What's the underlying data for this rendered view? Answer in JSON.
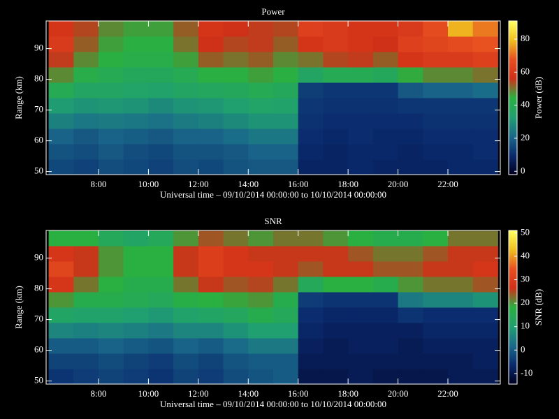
{
  "chart_data": [
    {
      "type": "heatmap",
      "title": "Power",
      "ylabel": "Range (km)",
      "xlabel": "Universal time – 09/10/2014 00:00:00 to 10/10/2014 00:00:00",
      "colorbar_label": "Power (dB)",
      "xlim": [
        5.9,
        24.1
      ],
      "ylim": [
        49,
        99
      ],
      "zlim": [
        -2,
        91
      ],
      "xticks": [
        {
          "value": 8,
          "label": "8:00"
        },
        {
          "value": 10,
          "label": "10:00"
        },
        {
          "value": 12,
          "label": "12:00"
        },
        {
          "value": 14,
          "label": "14:00"
        },
        {
          "value": 16,
          "label": "16:00"
        },
        {
          "value": 18,
          "label": "18:00"
        },
        {
          "value": 20,
          "label": "20:00"
        },
        {
          "value": 22,
          "label": "22:00"
        }
      ],
      "yticks": [
        50,
        60,
        70,
        80,
        90
      ],
      "zticks": [
        0,
        20,
        40,
        60,
        80
      ],
      "colormap": [
        "#000020",
        "#0a2a6e",
        "#1a6a8a",
        "#20a070",
        "#2ab040",
        "#d03018",
        "#e85020",
        "#f0c020",
        "#ffff60"
      ],
      "xbins": [
        6,
        7,
        8,
        9,
        10,
        11,
        12,
        13,
        14,
        15,
        16,
        17,
        18,
        19,
        20,
        21,
        22,
        23,
        24
      ],
      "ybins": [
        49,
        54,
        59,
        64,
        69,
        74,
        79,
        84,
        89,
        94,
        99
      ],
      "values": [
        [
          15,
          14,
          16,
          15,
          14,
          16,
          15,
          17,
          18,
          18,
          8,
          8,
          9,
          8,
          8,
          8,
          9,
          9
        ],
        [
          17,
          16,
          18,
          16,
          15,
          17,
          17,
          18,
          20,
          20,
          9,
          8,
          9,
          9,
          8,
          9,
          9,
          10
        ],
        [
          20,
          18,
          20,
          19,
          18,
          20,
          20,
          22,
          24,
          24,
          10,
          9,
          10,
          9,
          9,
          10,
          10,
          10
        ],
        [
          26,
          24,
          25,
          24,
          23,
          25,
          26,
          28,
          30,
          30,
          11,
          10,
          10,
          10,
          10,
          11,
          11,
          11
        ],
        [
          32,
          30,
          31,
          30,
          28,
          30,
          31,
          33,
          35,
          34,
          12,
          11,
          11,
          11,
          12,
          12,
          12,
          12
        ],
        [
          40,
          36,
          36,
          35,
          34,
          36,
          37,
          38,
          40,
          38,
          13,
          12,
          12,
          12,
          18,
          20,
          20,
          22
        ],
        [
          48,
          42,
          40,
          38,
          38,
          40,
          44,
          44,
          46,
          44,
          36,
          40,
          40,
          38,
          45,
          48,
          48,
          50
        ],
        [
          55,
          48,
          44,
          42,
          42,
          46,
          52,
          50,
          52,
          48,
          50,
          54,
          55,
          52,
          58,
          60,
          60,
          62
        ],
        [
          60,
          52,
          46,
          44,
          44,
          50,
          56,
          54,
          55,
          52,
          58,
          60,
          58,
          56,
          62,
          64,
          66,
          68
        ],
        [
          58,
          54,
          48,
          46,
          46,
          52,
          58,
          56,
          55,
          54,
          62,
          60,
          58,
          58,
          60,
          66,
          78,
          72
        ]
      ]
    },
    {
      "type": "heatmap",
      "title": "SNR",
      "ylabel": "Range (km)",
      "xlabel": "Universal time – 09/10/2014 00:00:00 to 10/10/2014 00:00:00",
      "colorbar_label": "SNR (dB)",
      "xlim": [
        5.9,
        24.1
      ],
      "ylim": [
        49,
        99
      ],
      "zlim": [
        -14.5,
        51
      ],
      "xticks": [
        {
          "value": 8,
          "label": "8:00"
        },
        {
          "value": 10,
          "label": "10:00"
        },
        {
          "value": 12,
          "label": "12:00"
        },
        {
          "value": 14,
          "label": "14:00"
        },
        {
          "value": 16,
          "label": "16:00"
        },
        {
          "value": 18,
          "label": "18:00"
        },
        {
          "value": 20,
          "label": "20:00"
        },
        {
          "value": 22,
          "label": "22:00"
        }
      ],
      "yticks": [
        50,
        60,
        70,
        80,
        90
      ],
      "zticks": [
        -10,
        0,
        10,
        20,
        30,
        40,
        50
      ],
      "colormap": [
        "#000020",
        "#0a2a6e",
        "#1a6a8a",
        "#20a070",
        "#2ab040",
        "#d03018",
        "#e85020",
        "#f0c020",
        "#ffff60"
      ],
      "xbins": [
        6,
        7,
        8,
        9,
        10,
        11,
        12,
        13,
        14,
        15,
        16,
        17,
        18,
        19,
        20,
        21,
        22,
        23,
        24
      ],
      "ybins": [
        49,
        54,
        59,
        64,
        69,
        74,
        79,
        84,
        89,
        94,
        99
      ],
      "values": [
        [
          -5,
          -4,
          -3,
          -4,
          -5,
          -3,
          -4,
          -2,
          -1,
          0,
          -10,
          -10,
          -9,
          -10,
          -10,
          -10,
          -9,
          -9
        ],
        [
          -3,
          -3,
          -2,
          -3,
          -4,
          -2,
          -3,
          -1,
          0,
          0,
          -9,
          -9,
          -9,
          -9,
          -9,
          -9,
          -9,
          -8
        ],
        [
          0,
          0,
          1,
          0,
          -1,
          1,
          0,
          2,
          4,
          4,
          -8,
          -9,
          -8,
          -8,
          -9,
          -8,
          -8,
          -8
        ],
        [
          6,
          5,
          6,
          5,
          4,
          6,
          6,
          8,
          10,
          10,
          -7,
          -8,
          -8,
          -8,
          -8,
          -7,
          -7,
          -7
        ],
        [
          12,
          11,
          11,
          10,
          9,
          11,
          12,
          13,
          16,
          14,
          -6,
          -7,
          -7,
          -7,
          -5,
          -6,
          -6,
          -6
        ],
        [
          20,
          16,
          16,
          15,
          14,
          17,
          18,
          19,
          20,
          16,
          -4,
          -5,
          -5,
          -5,
          4,
          6,
          6,
          8
        ],
        [
          28,
          22,
          18,
          16,
          16,
          22,
          26,
          24,
          25,
          22,
          14,
          18,
          18,
          16,
          20,
          22,
          22,
          24
        ],
        [
          32,
          26,
          20,
          18,
          18,
          26,
          30,
          28,
          28,
          26,
          24,
          26,
          26,
          24,
          24,
          26,
          26,
          28
        ],
        [
          28,
          26,
          20,
          18,
          18,
          26,
          30,
          28,
          26,
          26,
          26,
          26,
          24,
          22,
          22,
          24,
          26,
          26
        ],
        [
          18,
          18,
          14,
          12,
          14,
          20,
          24,
          22,
          20,
          22,
          22,
          20,
          18,
          16,
          16,
          18,
          22,
          22
        ]
      ]
    }
  ]
}
